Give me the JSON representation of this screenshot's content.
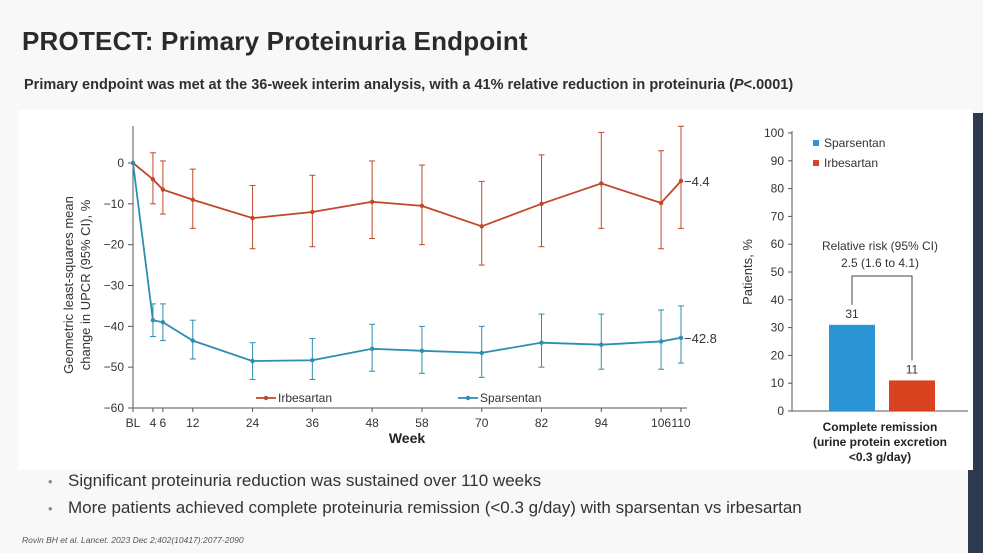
{
  "title": "PROTECT: Primary Proteinuria Endpoint",
  "subtitle_prefix": "Primary endpoint was met at the 36-week interim analysis, with a 41% relative reduction in proteinuria (",
  "subtitle_p": "P",
  "subtitle_suffix": "<.0001)",
  "bullets": [
    "Significant proteinuria reduction was sustained over 110 weeks",
    "More patients achieved complete proteinuria remission (<0.3 g/day) with sparsentan vs irbesartan"
  ],
  "citation": "Rovin BH et al. Lancet. 2023 Dec 2;402(10417):2077-2090",
  "colors": {
    "irbesartan": "#c0482a",
    "sparsentan": "#2d8fb0",
    "sparsentan_bar": "#2b95d6",
    "irbesartan_bar": "#d8421e"
  },
  "chart_data": [
    {
      "type": "line",
      "xlabel": "Week",
      "ylabel": "Geometric least-squares mean change in UPCR (95% CI), %",
      "ylim": [
        -60,
        0
      ],
      "yticks": [
        0,
        -10,
        -20,
        -30,
        -40,
        -50,
        -60
      ],
      "xtick_labels": [
        "BL",
        "4",
        "6",
        "12",
        "24",
        "36",
        "48",
        "58",
        "70",
        "82",
        "94",
        "106",
        "110"
      ],
      "x": [
        0,
        4,
        6,
        12,
        24,
        36,
        48,
        58,
        70,
        82,
        94,
        106,
        110
      ],
      "legend": "bottom",
      "series": [
        {
          "name": "Irbesartan",
          "values": [
            0,
            -4,
            -6.5,
            -9,
            -13.5,
            -12,
            -9.5,
            -10.5,
            -15.5,
            -10,
            -5,
            -9.8,
            -4.4
          ],
          "ci_low": [
            0,
            -10,
            -12.5,
            -16,
            -21,
            -20.5,
            -18.5,
            -20,
            -25,
            -20.5,
            -16,
            -21,
            -16
          ],
          "ci_high": [
            0,
            2.5,
            0.5,
            -1.5,
            -5.5,
            -3,
            0.5,
            -0.5,
            -4.5,
            2,
            7.5,
            3,
            9
          ]
        },
        {
          "name": "Sparsentan",
          "values": [
            0,
            -38.5,
            -39,
            -43.5,
            -48.5,
            -48.3,
            -45.5,
            -46,
            -46.5,
            -44,
            -44.5,
            -43.7,
            -42.8
          ],
          "ci_low": [
            0,
            -42.5,
            -43.5,
            -48,
            -53,
            -53,
            -51,
            -51.5,
            -52.5,
            -50,
            -50.5,
            -50.5,
            -49
          ],
          "ci_high": [
            0,
            -34.5,
            -34.5,
            -38.5,
            -44,
            -43,
            -39.5,
            -40,
            -40,
            -37,
            -37,
            -36,
            -35
          ]
        }
      ],
      "end_labels": [
        "−4.4",
        "−42.8"
      ]
    },
    {
      "type": "bar",
      "ylabel": "Patients, %",
      "ylim": [
        0,
        100
      ],
      "yticks": [
        0,
        10,
        20,
        30,
        40,
        50,
        60,
        70,
        80,
        90,
        100
      ],
      "categories": [
        "Sparsentan",
        "Irbesartan"
      ],
      "values": [
        31,
        11
      ],
      "legend": "top-left",
      "annotation_line1": "Relative risk (95% CI)",
      "annotation_line2": "2.5 (1.6 to 4.1)",
      "xlabel_lines": [
        "Complete remission",
        "(urine protein excretion",
        "<0.3 g/day)"
      ]
    }
  ]
}
